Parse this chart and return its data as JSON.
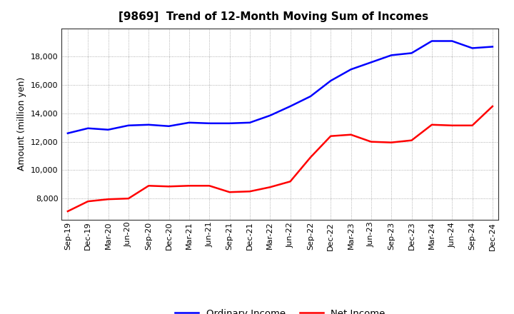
{
  "title": "[9869]  Trend of 12-Month Moving Sum of Incomes",
  "ylabel": "Amount (million yen)",
  "x_labels": [
    "Sep-19",
    "Dec-19",
    "Mar-20",
    "Jun-20",
    "Sep-20",
    "Dec-20",
    "Mar-21",
    "Jun-21",
    "Sep-21",
    "Dec-21",
    "Mar-22",
    "Jun-22",
    "Sep-22",
    "Dec-22",
    "Mar-23",
    "Jun-23",
    "Sep-23",
    "Dec-23",
    "Mar-24",
    "Jun-24",
    "Sep-24",
    "Dec-24"
  ],
  "ordinary_income": [
    12600,
    12950,
    12850,
    13150,
    13200,
    13100,
    13350,
    13300,
    13300,
    13350,
    13850,
    14500,
    15200,
    16300,
    17100,
    17600,
    18100,
    18250,
    19100,
    19100,
    18600,
    18700
  ],
  "net_income": [
    7100,
    7800,
    7950,
    8000,
    8900,
    8850,
    8900,
    8900,
    8450,
    8500,
    8800,
    9200,
    10900,
    12400,
    12500,
    12000,
    11950,
    12100,
    13200,
    13150,
    13150,
    14500
  ],
  "ordinary_color": "#0000ff",
  "net_color": "#ff0000",
  "ylim_min": 6500,
  "ylim_max": 20000,
  "yticks": [
    8000,
    10000,
    12000,
    14000,
    16000,
    18000
  ],
  "background_color": "#ffffff",
  "plot_bg_color": "#ffffff",
  "grid_color": "#999999",
  "title_fontsize": 11,
  "axis_label_fontsize": 9,
  "tick_fontsize": 8,
  "legend_labels": [
    "Ordinary Income",
    "Net Income"
  ],
  "line_width": 1.8
}
